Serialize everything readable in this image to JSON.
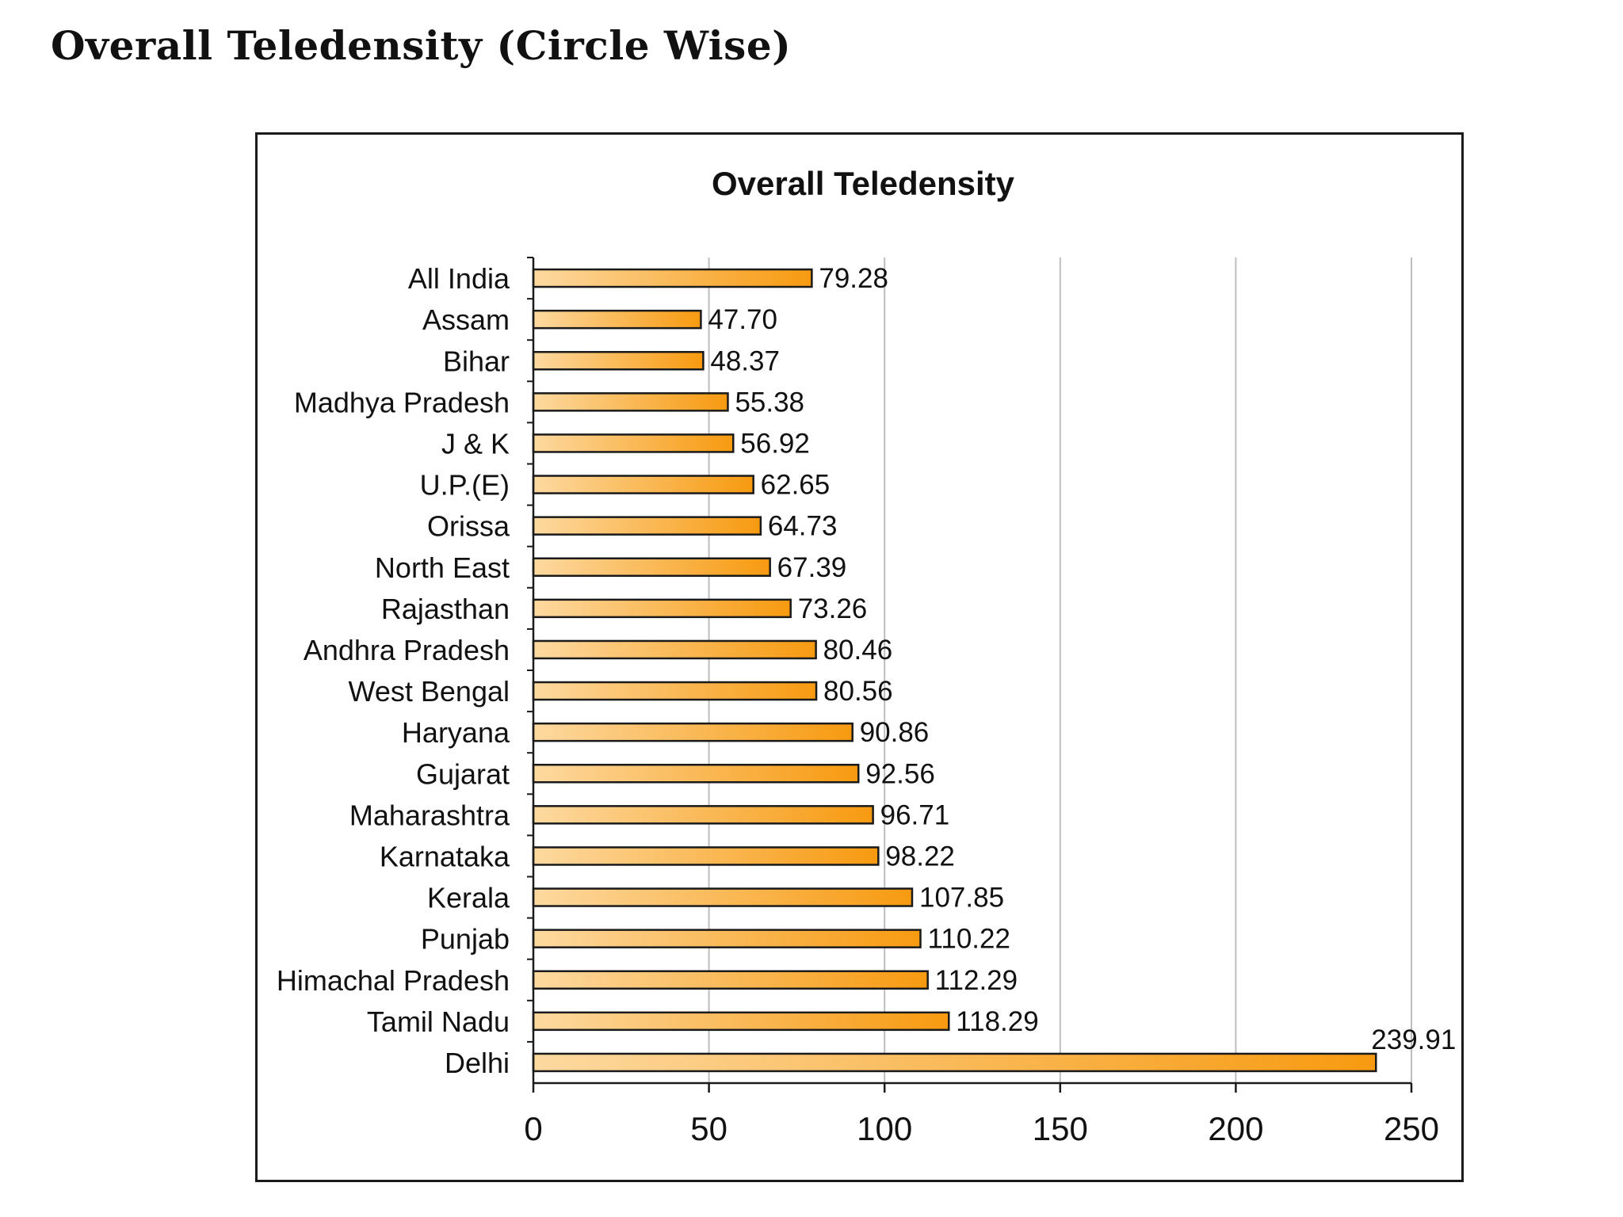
{
  "page": {
    "heading": "Overall Teledensity (Circle Wise)"
  },
  "chart_data": {
    "type": "bar",
    "orientation": "horizontal",
    "title": "Overall Teledensity",
    "xlabel": "",
    "ylabel": "",
    "categories": [
      "All India",
      "Assam",
      "Bihar",
      "Madhya Pradesh",
      "J & K",
      "U.P.(E)",
      "Orissa",
      "North East",
      "Rajasthan",
      "Andhra Pradesh",
      "West Bengal",
      "Haryana",
      "Gujarat",
      "Maharashtra",
      "Karnataka",
      "Kerala",
      "Punjab",
      "Himachal Pradesh",
      "Tamil Nadu",
      "Delhi"
    ],
    "values": [
      79.28,
      47.7,
      48.37,
      55.38,
      56.92,
      62.65,
      64.73,
      67.39,
      73.26,
      80.46,
      80.56,
      90.86,
      92.56,
      96.71,
      98.22,
      107.85,
      110.22,
      112.29,
      118.29,
      239.91
    ],
    "value_labels": [
      "79.28",
      "47.70",
      "48.37",
      "55.38",
      "56.92",
      "62.65",
      "64.73",
      "67.39",
      "73.26",
      "80.46",
      "80.56",
      "90.86",
      "92.56",
      "96.71",
      "98.22",
      "107.85",
      "110.22",
      "112.29",
      "118.29",
      "239.91"
    ],
    "xlim": [
      0,
      250
    ],
    "xticks": [
      0,
      50,
      100,
      150,
      200,
      250
    ],
    "xtick_labels": [
      "0",
      "50",
      "100",
      "150",
      "200",
      "250"
    ],
    "grid": "vertical",
    "legend": "none",
    "colors": {
      "bar_gradient_start": "#fdd9a0",
      "bar_gradient_end": "#f79a10",
      "bar_outline": "#1a1a1a",
      "gridline": "#bdbdbd"
    }
  }
}
